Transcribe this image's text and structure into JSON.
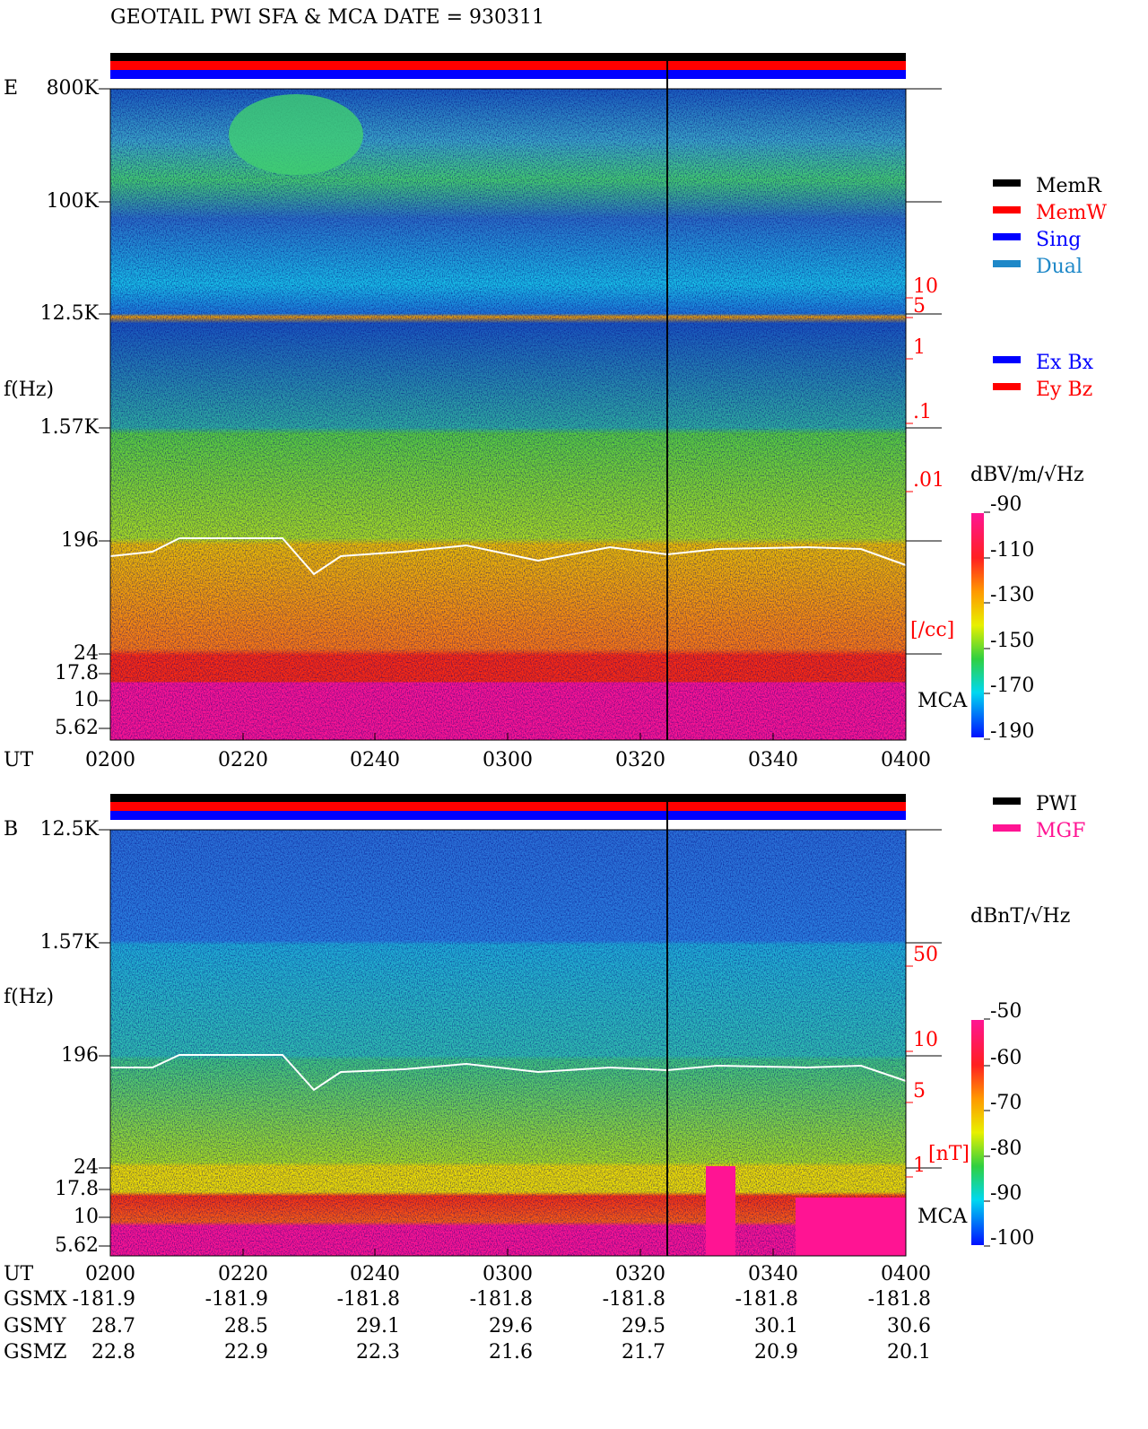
{
  "header": {
    "title": "GEOTAIL  PWI SFA & MCA   DATE = 930311"
  },
  "panels": [
    {
      "label": "E",
      "y_axis_label": "f(Hz)",
      "time_label": "UT",
      "freq_ticks": [
        "800K",
        "100K",
        "12.5K",
        "1.57K",
        "196",
        "24",
        "17.8",
        "10",
        "5.62"
      ],
      "time_ticks": [
        "0200",
        "0220",
        "0240",
        "0300",
        "0320",
        "0340",
        "0400"
      ],
      "right_ticks": [
        "10",
        "5",
        "1",
        ".1",
        ".01"
      ],
      "right_unit": "[/cc]",
      "mca_label": "MCA",
      "colorbar": {
        "unit": "dBV/m/√Hz",
        "ticks": [
          "-90",
          "-110",
          "-130",
          "-150",
          "-170",
          "-190"
        ]
      },
      "legend": [
        {
          "name": "MemR",
          "color": "#000000"
        },
        {
          "name": "MemW",
          "color": "#ff0000"
        },
        {
          "name": "Sing",
          "color": "#0000ff"
        },
        {
          "name": "Dual",
          "color": "#1e88c8"
        }
      ],
      "legend2": [
        {
          "name": "Ex Bx",
          "color": "#0000ff"
        },
        {
          "name": "Ey Bz",
          "color": "#ff0000"
        }
      ]
    },
    {
      "label": "B",
      "y_axis_label": "f(Hz)",
      "time_label": "UT",
      "freq_ticks": [
        "12.5K",
        "1.57K",
        "196",
        "24",
        "17.8",
        "10",
        "5.62"
      ],
      "time_ticks": [
        "0200",
        "0220",
        "0240",
        "0300",
        "0320",
        "0340",
        "0400"
      ],
      "right_ticks": [
        "50",
        "10",
        "5",
        "1"
      ],
      "right_unit": "[nT]",
      "mca_label": "MCA",
      "colorbar": {
        "unit": "dBnT/√Hz",
        "ticks": [
          "-50",
          "-60",
          "-70",
          "-80",
          "-90",
          "-100"
        ]
      },
      "legend": [
        {
          "name": "PWI",
          "color": "#000000"
        },
        {
          "name": "MGF",
          "color": "#ff1493"
        }
      ]
    }
  ],
  "orbit": [
    {
      "label": "GSMX",
      "values": [
        "-181.9",
        "-181.9",
        "-181.8",
        "-181.8",
        "-181.8",
        "-181.8",
        "-181.8"
      ]
    },
    {
      "label": "GSMY",
      "values": [
        "28.7",
        "28.5",
        "29.1",
        "29.6",
        "29.5",
        "30.1",
        "30.6"
      ]
    },
    {
      "label": "GSMZ",
      "values": [
        "22.8",
        "22.9",
        "22.3",
        "21.6",
        "21.7",
        "20.9",
        "20.1"
      ]
    }
  ]
}
